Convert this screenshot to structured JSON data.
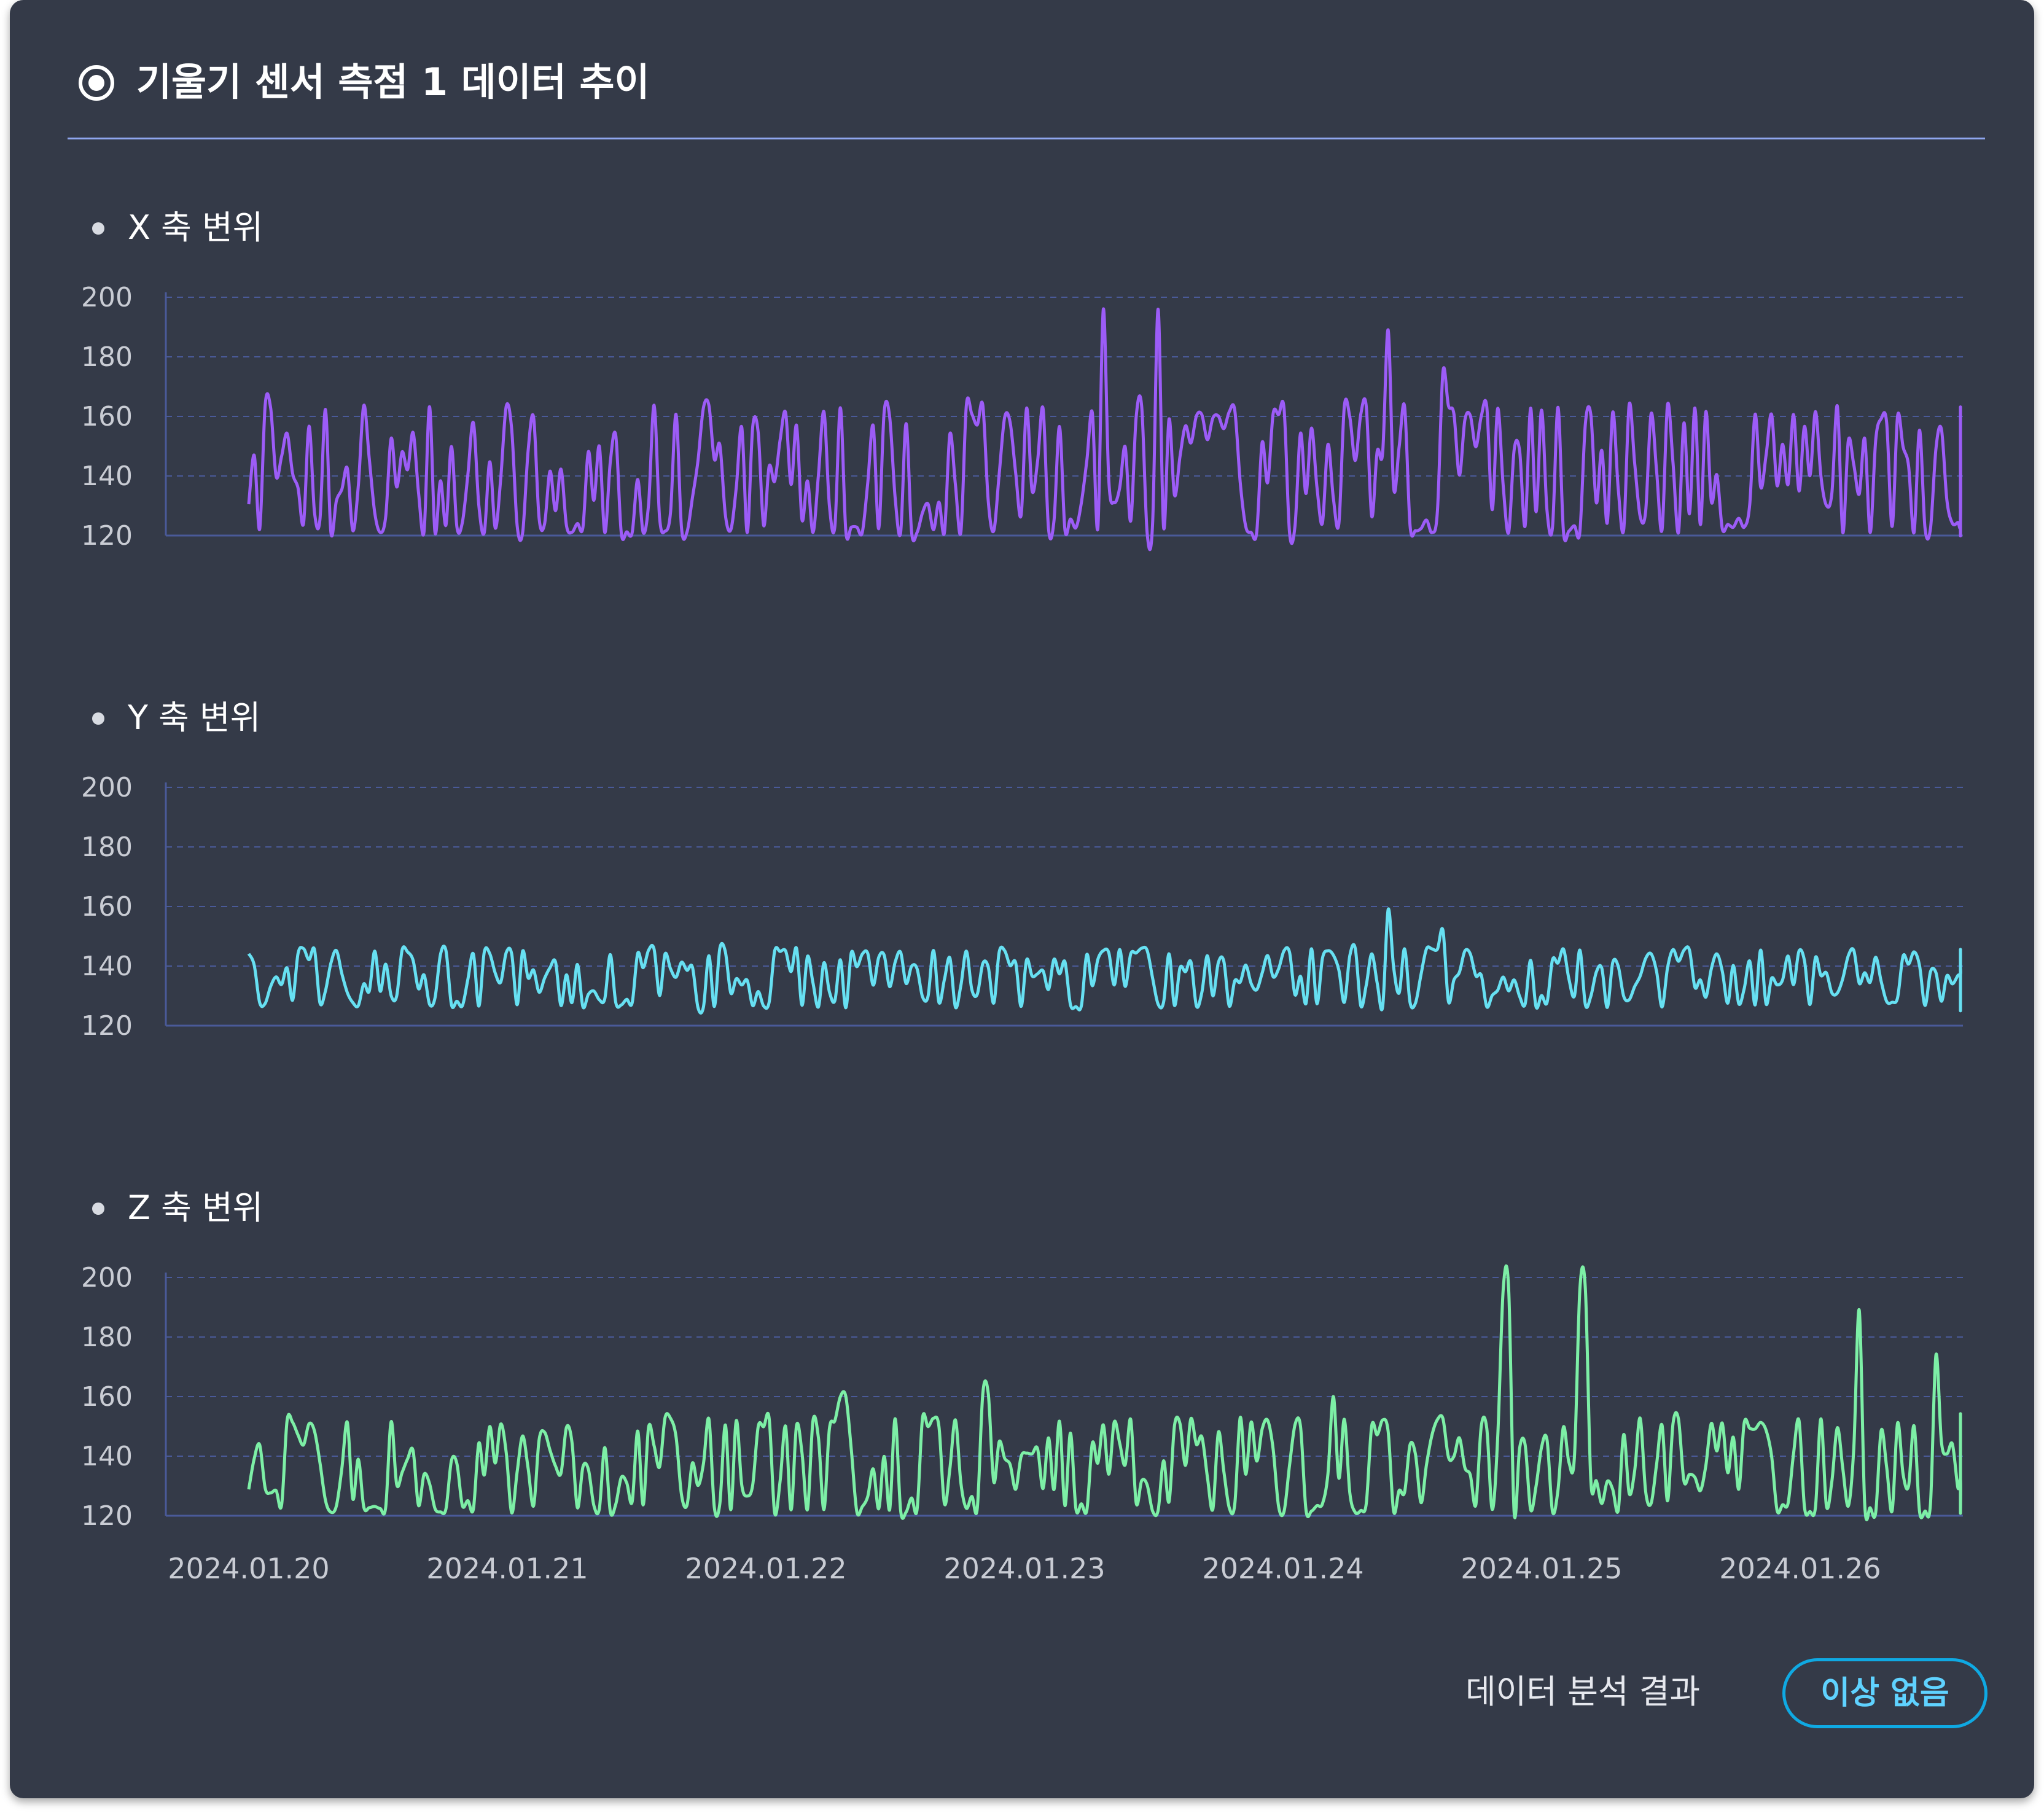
{
  "header": {
    "title": "기울기 센서 측점 1 데이터 추이"
  },
  "sections": [
    {
      "label": "X 축 변위",
      "color": "#9c5cf7"
    },
    {
      "label": "Y 축 변위",
      "color": "#67e0f2"
    },
    {
      "label": "Z 축 변위",
      "color": "#7defa6"
    }
  ],
  "footer": {
    "result_label": "데이터 분석 결과",
    "result_value": "이상 없음"
  },
  "chart_data": [
    {
      "type": "line",
      "title": "X 축 변위",
      "ylim": [
        120,
        200
      ],
      "yticks": [
        120,
        140,
        160,
        180,
        200
      ],
      "xticks": [
        "2024.01.20",
        "2024.01.21",
        "2024.01.22",
        "2024.01.23",
        "2024.01.24",
        "2024.01.25",
        "2024.01.26"
      ],
      "x_range_days": [
        0,
        6.97
      ],
      "amplitude": 22,
      "center": 142,
      "spikes": [
        [
          3.3,
          196
        ],
        [
          3.52,
          196
        ],
        [
          4.41,
          189
        ],
        [
          4.62,
          175
        ]
      ],
      "seed": 7,
      "color": "#9c5cf7"
    },
    {
      "type": "line",
      "title": "Y 축 변위",
      "ylim": [
        120,
        200
      ],
      "yticks": [
        120,
        140,
        160,
        180,
        200
      ],
      "xticks": [],
      "x_range_days": [
        0,
        6.97
      ],
      "amplitude": 10,
      "center": 136,
      "spikes": [
        [
          4.41,
          159
        ],
        [
          4.62,
          152
        ]
      ],
      "seed": 11,
      "color": "#67e0f2"
    },
    {
      "type": "line",
      "title": "Z 축 변위",
      "ylim": [
        120,
        200
      ],
      "yticks": [
        120,
        140,
        160,
        180,
        200
      ],
      "xticks": [
        "2024.01.20",
        "2024.01.21",
        "2024.01.22",
        "2024.01.23",
        "2024.01.24",
        "2024.01.25",
        "2024.01.26"
      ],
      "x_range_days": [
        0,
        6.97
      ],
      "amplitude": 16,
      "center": 137,
      "spikes": [
        [
          4.86,
          196
        ],
        [
          5.16,
          196
        ],
        [
          6.23,
          189
        ],
        [
          6.52,
          174
        ],
        [
          2.3,
          160
        ],
        [
          2.85,
          161
        ],
        [
          4.2,
          160
        ]
      ],
      "seed": 23,
      "color": "#7defa6"
    }
  ]
}
